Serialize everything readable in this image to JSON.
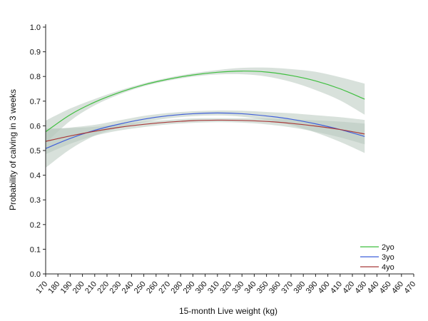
{
  "chart_data": {
    "type": "line",
    "title": "",
    "xlabel": "15-month Live weight (kg)",
    "ylabel": "Probability of calving in 3 weeks",
    "xlim": [
      170,
      470
    ],
    "ylim": [
      0.0,
      1.0
    ],
    "x_ticks": [
      170,
      180,
      190,
      200,
      210,
      220,
      230,
      240,
      250,
      260,
      270,
      280,
      290,
      300,
      310,
      320,
      330,
      340,
      350,
      360,
      370,
      380,
      390,
      400,
      410,
      420,
      430,
      440,
      450,
      460,
      470
    ],
    "y_ticks": [
      "0.0",
      "0.1",
      "0.2",
      "0.3",
      "0.4",
      "0.5",
      "0.6",
      "0.7",
      "0.8",
      "0.9",
      "1.0"
    ],
    "grid": false,
    "legend_position": "bottom-right",
    "x": [
      170,
      190,
      210,
      230,
      250,
      270,
      290,
      310,
      330,
      350,
      370,
      390,
      410,
      430
    ],
    "series": [
      {
        "name": "2yo",
        "color": "#3fbf3f",
        "values": [
          0.576,
          0.645,
          0.696,
          0.735,
          0.766,
          0.789,
          0.806,
          0.817,
          0.822,
          0.818,
          0.804,
          0.782,
          0.75,
          0.708
        ],
        "ci_lower": [
          0.53,
          0.62,
          0.683,
          0.727,
          0.76,
          0.783,
          0.799,
          0.808,
          0.809,
          0.8,
          0.778,
          0.745,
          0.703,
          0.645
        ],
        "ci_upper": [
          0.621,
          0.67,
          0.709,
          0.743,
          0.772,
          0.795,
          0.813,
          0.826,
          0.835,
          0.836,
          0.83,
          0.819,
          0.797,
          0.771
        ]
      },
      {
        "name": "3yo",
        "color": "#3f5fd9",
        "values": [
          0.508,
          0.549,
          0.582,
          0.607,
          0.627,
          0.641,
          0.649,
          0.652,
          0.649,
          0.64,
          0.627,
          0.608,
          0.585,
          0.557
        ],
        "ci_lower": [
          0.43,
          0.505,
          0.56,
          0.592,
          0.614,
          0.63,
          0.639,
          0.642,
          0.637,
          0.624,
          0.603,
          0.573,
          0.535,
          0.49
        ],
        "ci_upper": [
          0.585,
          0.593,
          0.604,
          0.622,
          0.64,
          0.652,
          0.659,
          0.662,
          0.661,
          0.656,
          0.651,
          0.643,
          0.635,
          0.624
        ]
      },
      {
        "name": "4yo",
        "color": "#a83a3a",
        "values": [
          0.537,
          0.559,
          0.578,
          0.594,
          0.606,
          0.615,
          0.621,
          0.623,
          0.622,
          0.618,
          0.61,
          0.599,
          0.585,
          0.567
        ],
        "ci_lower": [
          0.485,
          0.527,
          0.56,
          0.581,
          0.595,
          0.606,
          0.612,
          0.615,
          0.613,
          0.606,
          0.594,
          0.576,
          0.553,
          0.525
        ],
        "ci_upper": [
          0.589,
          0.591,
          0.596,
          0.607,
          0.617,
          0.624,
          0.63,
          0.631,
          0.631,
          0.63,
          0.626,
          0.622,
          0.617,
          0.609
        ]
      }
    ]
  }
}
